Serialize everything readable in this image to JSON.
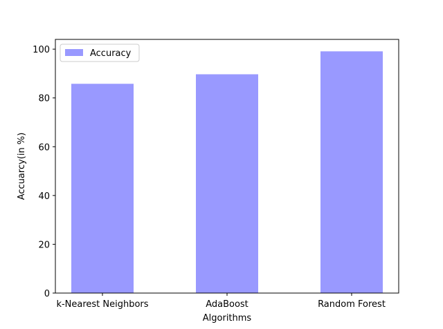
{
  "chart_data": {
    "type": "bar",
    "categories": [
      "k-Nearest Neighbors",
      "AdaBoost",
      "Random Forest"
    ],
    "series": [
      {
        "name": "Accuracy",
        "values": [
          85.8,
          89.7,
          99.1
        ],
        "color": "#9999ff"
      }
    ],
    "xlabel": "Algorithms",
    "ylabel": "Accuarcy(in %)",
    "ylim": [
      0,
      104
    ],
    "yticks": [
      0,
      20,
      40,
      60,
      80,
      100
    ],
    "grid": false,
    "legend": {
      "position": "top-left",
      "entries": [
        "Accuracy"
      ]
    }
  }
}
